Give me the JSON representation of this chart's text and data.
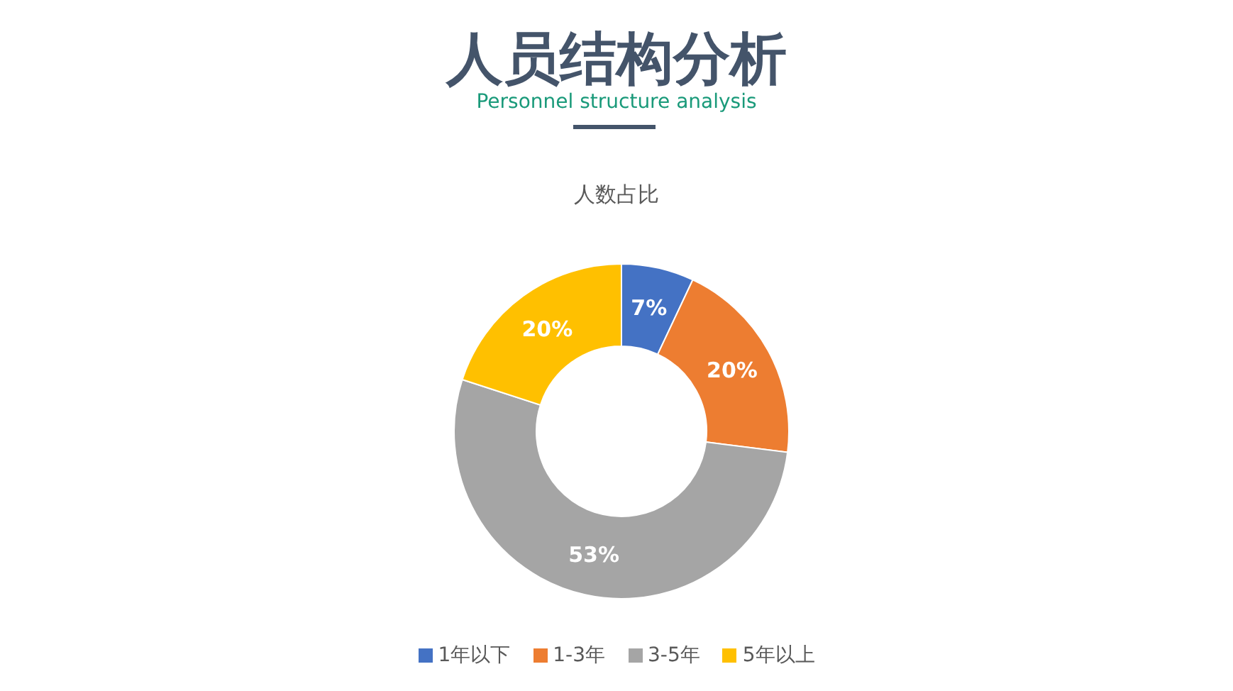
{
  "chart_data": {
    "type": "donut",
    "title": "人员结构分析",
    "subtitle": "Personnel structure analysis",
    "annotations": [
      "人数占比"
    ],
    "categories": [
      "1年以下",
      "1-3年",
      "3-5年",
      "5年以上"
    ],
    "values": [
      7,
      20,
      53,
      20
    ],
    "colors": [
      "#4472c4",
      "#ed7d31",
      "#a5a5a5",
      "#ffc000"
    ],
    "value_labels": [
      "7%",
      "20%",
      "53%",
      "20%"
    ],
    "legend": "bottom"
  }
}
